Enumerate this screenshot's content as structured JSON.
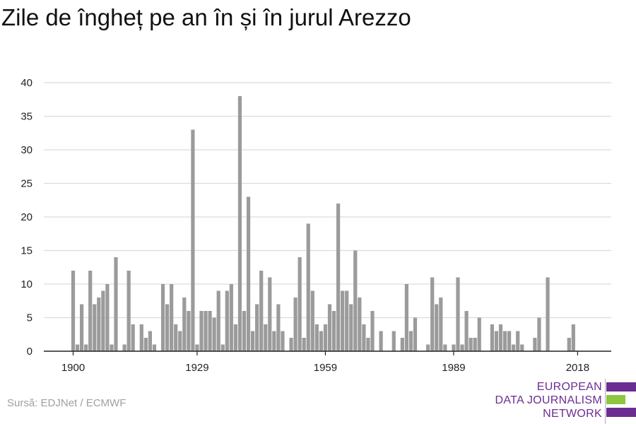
{
  "title": "Zile de îngheț pe an în și în jurul Arezzo",
  "source": "Sursă: EDJNet / ECMWF",
  "logo": {
    "line1": "EUROPEAN",
    "line2": "DATA JOURNALISM",
    "line3": "NETWORK",
    "colors": [
      "#6b2d91",
      "#8dc63f",
      "#6b2d91"
    ]
  },
  "colors": {
    "bar": "#9b9b9b",
    "grid": "#dcdcdc",
    "axis": "#222222",
    "text": "#222222"
  },
  "chart_data": {
    "type": "bar",
    "title": "Zile de îngheț pe an în și în jurul Arezzo",
    "xlabel": "",
    "ylabel": "",
    "ylim": [
      0,
      40
    ],
    "xlim": [
      1900,
      2018
    ],
    "yticks": [
      0,
      5,
      10,
      15,
      20,
      25,
      30,
      35,
      40
    ],
    "xticks": [
      1900,
      1929,
      1959,
      1989,
      2018
    ],
    "grid": true,
    "x": [
      1900,
      1901,
      1902,
      1903,
      1904,
      1905,
      1906,
      1907,
      1908,
      1909,
      1910,
      1911,
      1912,
      1913,
      1914,
      1915,
      1916,
      1917,
      1918,
      1919,
      1920,
      1921,
      1922,
      1923,
      1924,
      1925,
      1926,
      1927,
      1928,
      1929,
      1930,
      1931,
      1932,
      1933,
      1934,
      1935,
      1936,
      1937,
      1938,
      1939,
      1940,
      1941,
      1942,
      1943,
      1944,
      1945,
      1946,
      1947,
      1948,
      1949,
      1950,
      1951,
      1952,
      1953,
      1954,
      1955,
      1956,
      1957,
      1958,
      1959,
      1960,
      1961,
      1962,
      1963,
      1964,
      1965,
      1966,
      1967,
      1968,
      1969,
      1970,
      1971,
      1972,
      1973,
      1974,
      1975,
      1976,
      1977,
      1978,
      1979,
      1980,
      1981,
      1982,
      1983,
      1984,
      1985,
      1986,
      1987,
      1988,
      1989,
      1990,
      1991,
      1992,
      1993,
      1994,
      1995,
      1996,
      1997,
      1998,
      1999,
      2000,
      2001,
      2002,
      2003,
      2004,
      2005,
      2006,
      2007,
      2008,
      2009,
      2010,
      2011,
      2012,
      2013,
      2014,
      2015,
      2016,
      2017,
      2018
    ],
    "values": [
      12,
      1,
      7,
      1,
      12,
      7,
      8,
      9,
      10,
      1,
      14,
      0,
      1,
      12,
      4,
      0,
      4,
      2,
      3,
      1,
      0,
      10,
      7,
      10,
      4,
      3,
      8,
      6,
      33,
      1,
      6,
      6,
      6,
      5,
      9,
      1,
      9,
      10,
      4,
      38,
      6,
      23,
      3,
      7,
      12,
      4,
      11,
      3,
      7,
      3,
      0,
      2,
      8,
      14,
      2,
      19,
      9,
      4,
      3,
      4,
      7,
      6,
      22,
      9,
      9,
      7,
      15,
      8,
      4,
      2,
      6,
      0,
      3,
      0,
      0,
      3,
      0,
      2,
      10,
      3,
      5,
      0,
      0,
      1,
      11,
      7,
      8,
      1,
      0,
      1,
      11,
      1,
      6,
      2,
      2,
      5,
      0,
      0,
      4,
      3,
      4,
      3,
      3,
      1,
      3,
      1,
      0,
      0,
      2,
      5,
      0,
      11,
      0,
      0,
      0,
      0,
      2,
      4,
      0
    ]
  }
}
